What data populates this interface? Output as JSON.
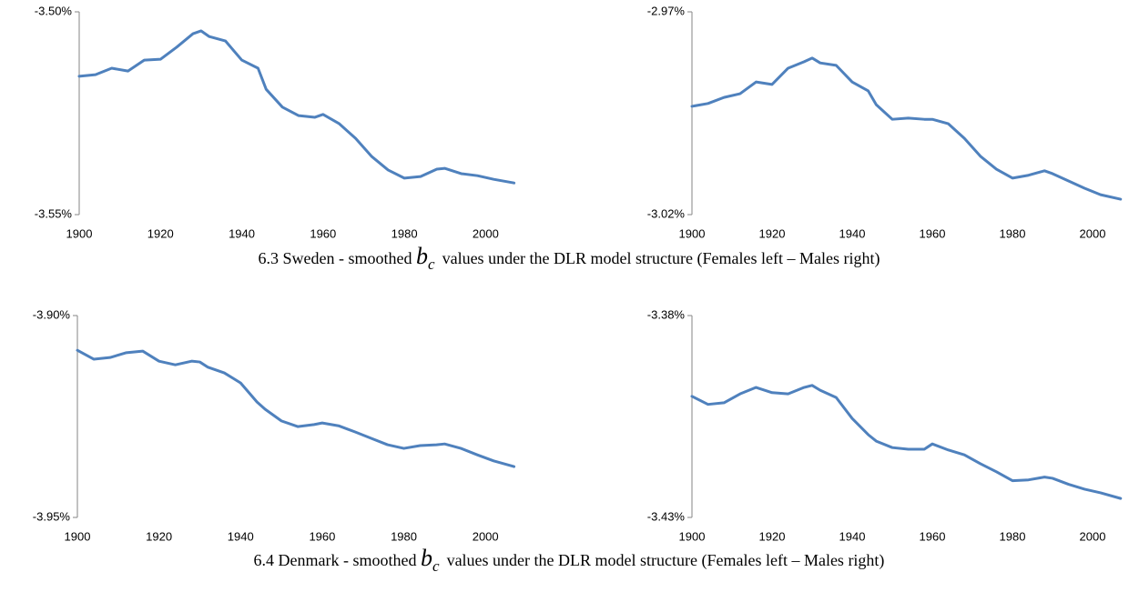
{
  "chart_data": [
    {
      "type": "line",
      "x": [
        1900,
        1904,
        1908,
        1912,
        1916,
        1920,
        1924,
        1928,
        1930,
        1932,
        1936,
        1940,
        1944,
        1946,
        1950,
        1954,
        1958,
        1960,
        1964,
        1968,
        1972,
        1976,
        1980,
        1984,
        1988,
        1990,
        1994,
        1998,
        2002,
        2007
      ],
      "series": [
        {
          "color": "#4f81bd",
          "values": [
            -3.5159,
            -3.5155,
            -3.5139,
            -3.5146,
            -3.5119,
            -3.5117,
            -3.5087,
            -3.5054,
            -3.5047,
            -3.5061,
            -3.5072,
            -3.5119,
            -3.5139,
            -3.5191,
            -3.5235,
            -3.5256,
            -3.526,
            -3.5253,
            -3.5276,
            -3.5312,
            -3.5357,
            -3.539,
            -3.541,
            -3.5406,
            -3.5388,
            -3.5386,
            -3.5399,
            -3.5404,
            -3.5413,
            -3.5422
          ]
        }
      ],
      "xlim": [
        1900,
        2010
      ],
      "xticks": [
        1900,
        1920,
        1940,
        1960,
        1980,
        2000
      ],
      "ylim": [
        -3.55,
        -3.5
      ],
      "yticks": [
        {
          "value": -3.55,
          "label": "-3.55%"
        },
        {
          "value": -3.5,
          "label": "-3.50%"
        }
      ]
    },
    {
      "type": "line",
      "x": [
        1900,
        1904,
        1908,
        1912,
        1916,
        1920,
        1924,
        1928,
        1930,
        1932,
        1936,
        1940,
        1944,
        1946,
        1950,
        1954,
        1958,
        1960,
        1964,
        1968,
        1972,
        1976,
        1980,
        1984,
        1988,
        1990,
        1994,
        1998,
        2002,
        2007
      ],
      "series": [
        {
          "color": "#4f81bd",
          "values": [
            -2.9933,
            -2.9926,
            -2.9911,
            -2.9902,
            -2.9873,
            -2.9879,
            -2.9839,
            -2.9823,
            -2.9814,
            -2.9826,
            -2.9832,
            -2.9873,
            -2.9895,
            -2.9929,
            -2.9965,
            -2.9962,
            -2.9965,
            -2.9965,
            -2.9976,
            -3.0012,
            -3.0056,
            -3.0088,
            -3.011,
            -3.0103,
            -3.0092,
            -3.0099,
            -3.0117,
            -3.0135,
            -3.0151,
            -3.0162
          ]
        }
      ],
      "xlim": [
        1900,
        2010
      ],
      "xticks": [
        1900,
        1920,
        1940,
        1960,
        1980,
        2000
      ],
      "ylim": [
        -3.02,
        -2.97
      ],
      "yticks": [
        {
          "value": -3.02,
          "label": "-3.02%"
        },
        {
          "value": -2.97,
          "label": "-2.97%"
        }
      ]
    },
    {
      "type": "line",
      "x": [
        1900,
        1904,
        1908,
        1912,
        1916,
        1920,
        1924,
        1928,
        1930,
        1932,
        1936,
        1940,
        1944,
        1946,
        1950,
        1954,
        1958,
        1960,
        1964,
        1968,
        1972,
        1976,
        1980,
        1984,
        1988,
        1990,
        1994,
        1998,
        2002,
        2007
      ],
      "series": [
        {
          "color": "#4f81bd",
          "values": [
            -3.9086,
            -3.9108,
            -3.9104,
            -3.9092,
            -3.9088,
            -3.9113,
            -3.9122,
            -3.9113,
            -3.9115,
            -3.9128,
            -3.9142,
            -3.9167,
            -3.9214,
            -3.9232,
            -3.9261,
            -3.9275,
            -3.927,
            -3.9266,
            -3.9273,
            -3.9288,
            -3.9304,
            -3.932,
            -3.9329,
            -3.9322,
            -3.932,
            -3.9318,
            -3.9329,
            -3.9345,
            -3.936,
            -3.9374
          ]
        }
      ],
      "xlim": [
        1900,
        2010
      ],
      "xticks": [
        1900,
        1920,
        1940,
        1960,
        1980,
        2000
      ],
      "ylim": [
        -3.95,
        -3.9
      ],
      "yticks": [
        {
          "value": -3.95,
          "label": "-3.95%"
        },
        {
          "value": -3.9,
          "label": "-3.90%"
        }
      ]
    },
    {
      "type": "line",
      "x": [
        1900,
        1904,
        1908,
        1912,
        1916,
        1920,
        1924,
        1928,
        1930,
        1932,
        1936,
        1940,
        1944,
        1946,
        1950,
        1954,
        1958,
        1960,
        1964,
        1968,
        1972,
        1976,
        1980,
        1984,
        1988,
        1990,
        1994,
        1998,
        2002,
        2007
      ],
      "series": [
        {
          "color": "#4f81bd",
          "values": [
            -3.4,
            -3.402,
            -3.4016,
            -3.3994,
            -3.3978,
            -3.3991,
            -3.3994,
            -3.3978,
            -3.3973,
            -3.3985,
            -3.4003,
            -3.4055,
            -3.4095,
            -3.4111,
            -3.4127,
            -3.4131,
            -3.4131,
            -3.4118,
            -3.4133,
            -3.4145,
            -3.4167,
            -3.4187,
            -3.4209,
            -3.4207,
            -3.42,
            -3.4203,
            -3.4218,
            -3.423,
            -3.4239,
            -3.4253
          ]
        }
      ],
      "xlim": [
        1900,
        2010
      ],
      "xticks": [
        1900,
        1920,
        1940,
        1960,
        1980,
        2000
      ],
      "ylim": [
        -3.43,
        -3.38
      ],
      "yticks": [
        {
          "value": -3.43,
          "label": "-3.43%"
        },
        {
          "value": -3.38,
          "label": "-3.38%"
        }
      ]
    }
  ],
  "captions": [
    {
      "before": "6.3 Sweden - smoothed",
      "symbol": "b",
      "subscript": "c",
      "after": "values under the DLR model structure (Females left – Males right)"
    },
    {
      "before": "6.4 Denmark - smoothed",
      "symbol": "b",
      "subscript": "c",
      "after": "values under the DLR model structure (Females left – Males right)"
    }
  ]
}
